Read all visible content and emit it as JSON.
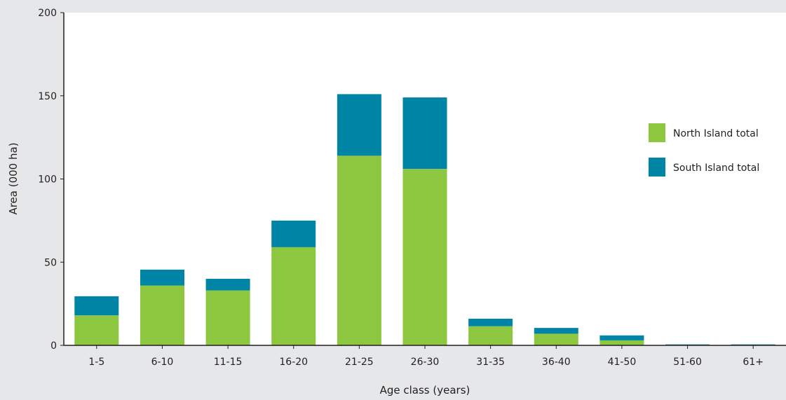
{
  "chart_data": {
    "type": "bar",
    "stacked": true,
    "categories": [
      "1-5",
      "6-10",
      "11-15",
      "16-20",
      "21-25",
      "26-30",
      "31-35",
      "36-40",
      "41-50",
      "51-60",
      "61+"
    ],
    "series": [
      {
        "name": "North Island total",
        "color": "#8dc63f",
        "values": [
          18,
          36,
          33,
          59,
          114,
          106,
          11.5,
          7,
          3,
          0.3,
          0.3
        ]
      },
      {
        "name": "South Island total",
        "color": "#0085a6",
        "values": [
          11.5,
          9.5,
          7,
          16,
          37,
          43,
          4.5,
          3.5,
          3,
          0.3,
          0.3
        ]
      }
    ],
    "title": "",
    "xlabel": "Age class (years)",
    "ylabel": "Area (000 ha)",
    "ylim": [
      0,
      200
    ],
    "yticks": [
      0,
      50,
      100,
      150,
      200
    ],
    "grid": false,
    "legend": "right"
  }
}
